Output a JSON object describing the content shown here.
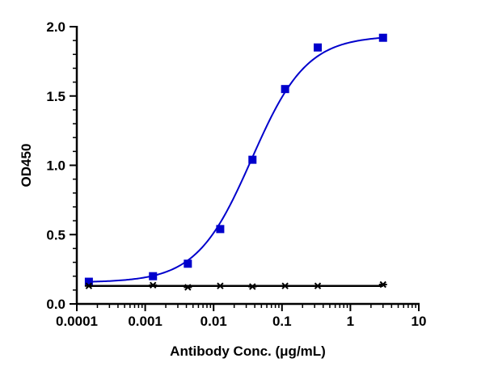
{
  "chart_data": {
    "type": "scatter",
    "title": "",
    "xlabel": "Antibody Conc. (μg/mL)",
    "ylabel": "OD450",
    "xscale": "log",
    "xlim": [
      0.0001,
      10
    ],
    "ylim": [
      0,
      2.0
    ],
    "x_ticks": [
      "0.0001",
      "0.001",
      "0.01",
      "0.1",
      "1",
      "10"
    ],
    "y_ticks": [
      "0.0",
      "0.5",
      "1.0",
      "1.5",
      "2.0"
    ],
    "grid": false,
    "legend": "none",
    "series": [
      {
        "marker": "square",
        "color": "#0000cc",
        "fit": "sigmoidal",
        "x": [
          0.00015,
          0.0013,
          0.0042,
          0.0125,
          0.037,
          0.111,
          0.333,
          3.0
        ],
        "y": [
          0.16,
          0.2,
          0.29,
          0.54,
          1.04,
          1.55,
          1.85,
          1.92
        ]
      },
      {
        "marker": "star",
        "color": "#000000",
        "fit": "line",
        "x": [
          0.00015,
          0.0013,
          0.0042,
          0.0125,
          0.037,
          0.111,
          0.333,
          3.0
        ],
        "y": [
          0.13,
          0.135,
          0.12,
          0.13,
          0.125,
          0.13,
          0.13,
          0.14
        ]
      }
    ]
  }
}
